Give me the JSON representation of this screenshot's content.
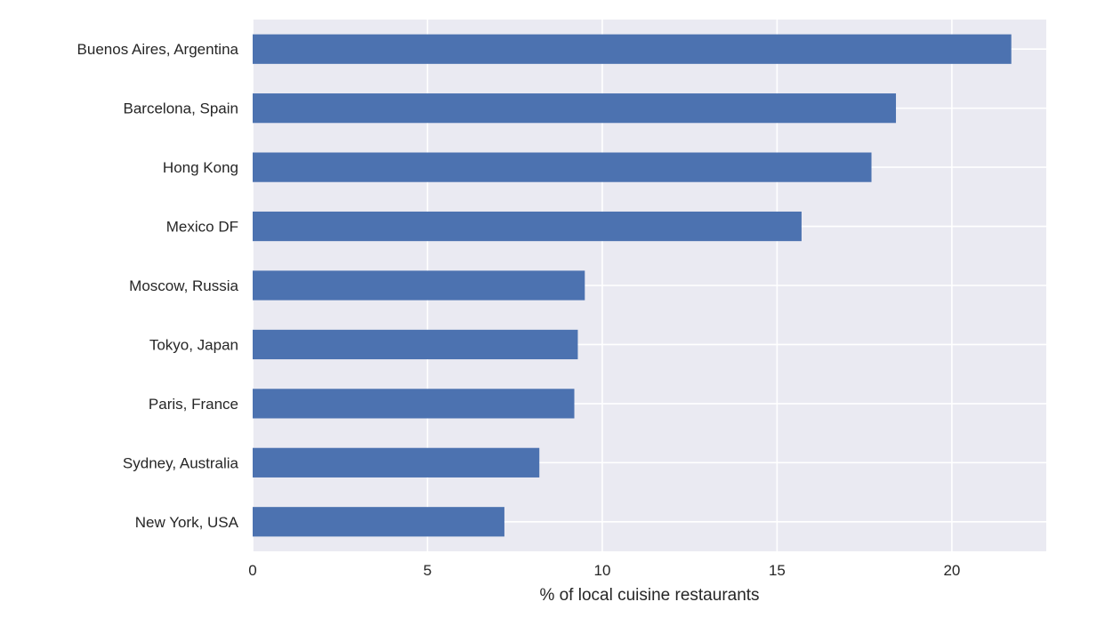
{
  "chart_data": {
    "type": "bar",
    "orientation": "horizontal",
    "title": "",
    "xlabel": "% of local cuisine restaurants",
    "ylabel": "",
    "xlim": [
      0,
      22.7
    ],
    "xticks": [
      0,
      5,
      10,
      15,
      20
    ],
    "grid": true,
    "categories": [
      "Buenos Aires, Argentina",
      "Barcelona, Spain",
      "Hong Kong",
      "Mexico DF",
      "Moscow, Russia",
      "Tokyo, Japan",
      "Paris, France",
      "Sydney, Australia",
      "New York, USA"
    ],
    "values": [
      21.7,
      18.4,
      17.7,
      15.7,
      9.5,
      9.3,
      9.2,
      8.2,
      7.2
    ],
    "colors": {
      "bar": "#4c72b0",
      "background": "#eaeaf2",
      "grid": "#ffffff",
      "text": "#262626"
    }
  }
}
